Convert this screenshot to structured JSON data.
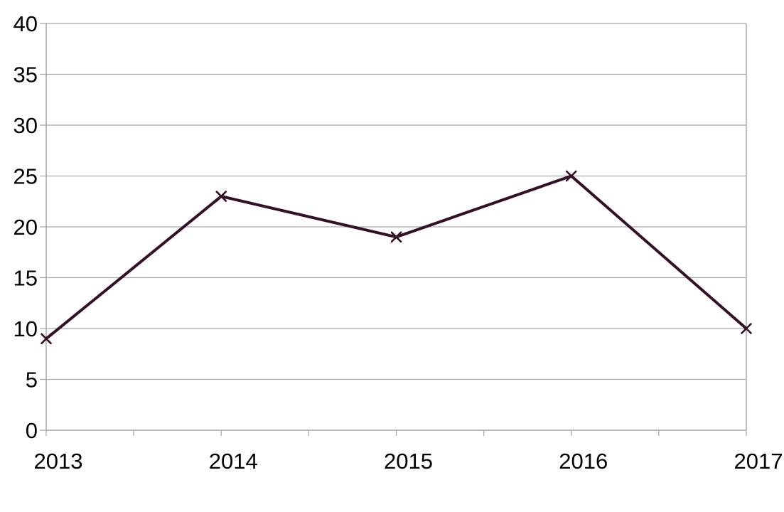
{
  "chart_data": {
    "type": "line",
    "categories": [
      "2013",
      "2014",
      "2015",
      "2016",
      "2017"
    ],
    "values": [
      9,
      23,
      19,
      25,
      10
    ],
    "title": "",
    "xlabel": "",
    "ylabel": "",
    "ylim": [
      0,
      40
    ],
    "y_ticks": [
      0,
      5,
      10,
      15,
      20,
      25,
      30,
      35,
      40
    ],
    "grid": true,
    "legend": "none",
    "marker": "x",
    "colors": {
      "line": "#331028",
      "grid": "#a9a9a9",
      "axis": "#a9a9a9",
      "text": "#000000",
      "background": "#ffffff"
    }
  }
}
